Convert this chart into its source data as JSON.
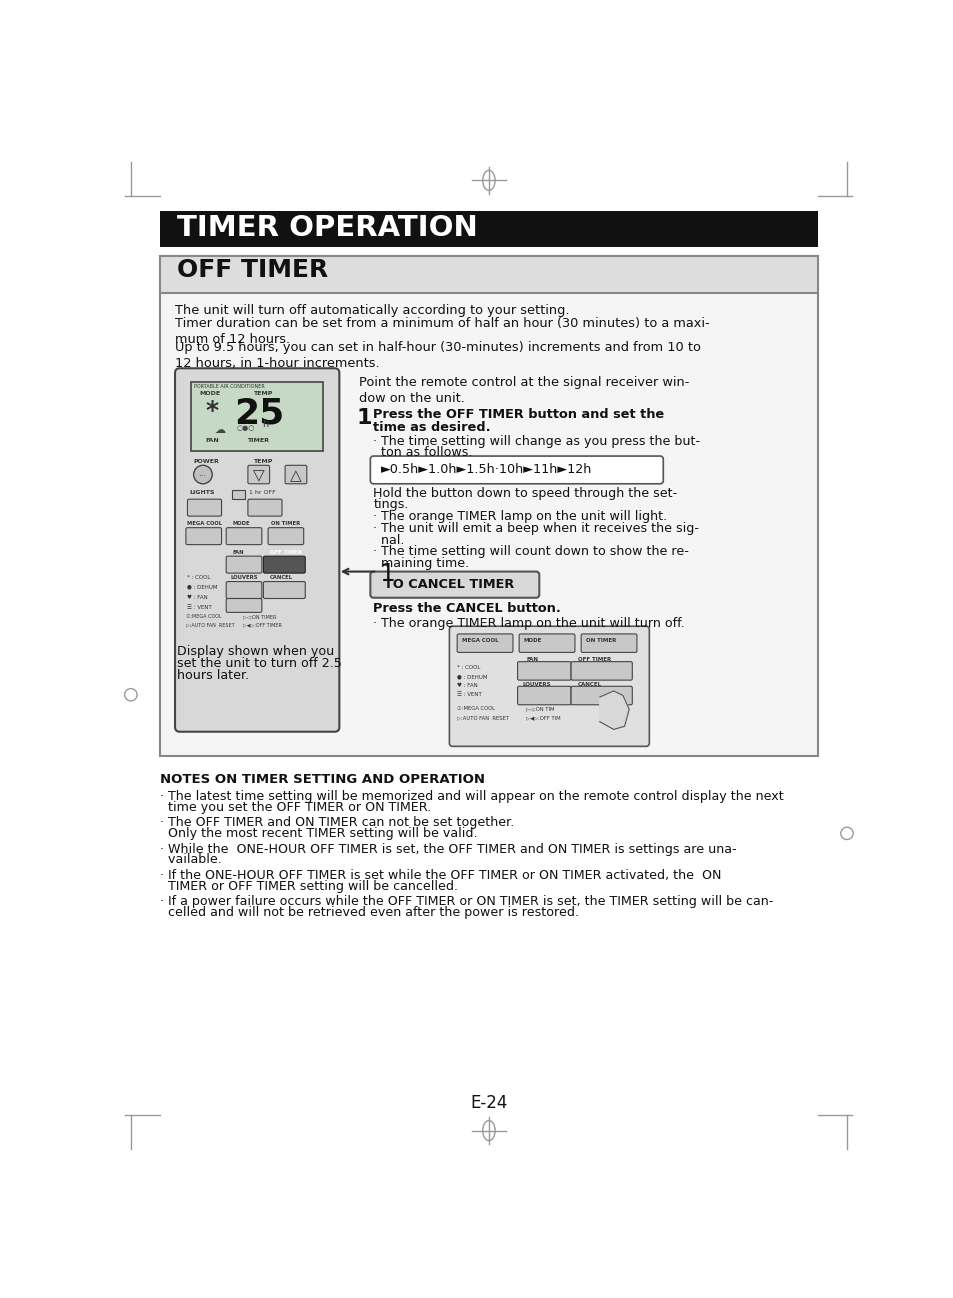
{
  "page_bg": "#ffffff",
  "header_bg": "#111111",
  "header_text": "TIMER OPERATION",
  "header_text_color": "#ffffff",
  "section_bg": "#e0e0e0",
  "section_border": "#888888",
  "section_title": "OFF TIMER",
  "body_text_1": "The unit will turn off automatically according to your setting.",
  "body_text_2": "Timer duration can be set from a minimum of half an hour (30 minutes) to a maxi-\nmum of 12 hours.",
  "body_text_3": "Up to 9.5 hours, you can set in half-hour (30-minutes) increments and from 10 to\n12 hours, in 1-hour increments.",
  "right_text_1": "Point the remote control at the signal receiver win-\ndow on the unit.",
  "step1_line1": "Press the OFF TIMER button and set the",
  "step1_line2": "time as desired.",
  "step1_sub1": "· The time setting will change as you press the but-",
  "step1_sub2": "  ton as follows.",
  "arrow_seq": "►0.5h►1.0h►1.5h·10h►11h►12h",
  "hold_text1": "Hold the button down to speed through the set-",
  "hold_text2": "tings.",
  "bullet1": "· The orange TIMER lamp on the unit will light.",
  "bullet2a": "· The unit will emit a beep when it receives the sig-",
  "bullet2b": "  nal.",
  "bullet3a": "· The time setting will count down to show the re-",
  "bullet3b": "  maining time.",
  "cancel_box_text": "TO CANCEL TIMER",
  "cancel_bold": "Press the CANCEL button.",
  "cancel_sub": "· The orange TIMER lamp on the unit will turn off.",
  "display_caption1": "Display shown when you",
  "display_caption2": "set the unit to turn off 2.5",
  "display_caption3": "hours later.",
  "notes_title": "NOTES ON TIMER SETTING AND OPERATION",
  "note1a": "· The latest time setting will be memorized and will appear on the remote control display the next",
  "note1b": "  time you set the OFF TIMER or ON TIMER.",
  "note2a": "· The OFF TIMER and ON TIMER can not be set together.",
  "note2b": "  Only the most recent TIMER setting will be valid.",
  "note3a": "· While the  ONE-HOUR OFF TIMER is set, the OFF TIMER and ON TIMER is settings are una-",
  "note3b": "  vailable.",
  "note4a": "· If the ONE-HOUR OFF TIMER is set while the OFF TIMER or ON TIMER activated, the  ON",
  "note4b": "  TIMER or OFF TIMER setting will be cancelled.",
  "note5a": "· If a power failure occurs while the OFF TIMER or ON TIMER is set, the TIMER setting will be can-",
  "note5b": "  celled and will not be retrieved even after the power is restored.",
  "page_number": "E-24"
}
